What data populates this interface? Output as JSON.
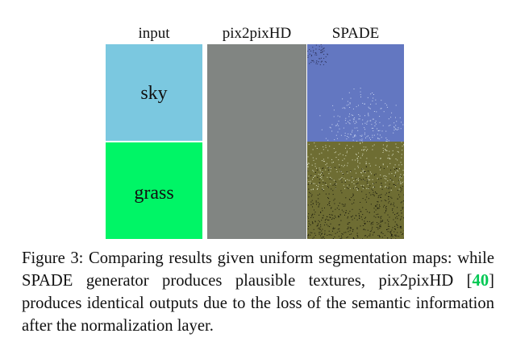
{
  "figure": {
    "columns": {
      "input": "input",
      "pix2pixhd": "pix2pixHD",
      "spade": "SPADE"
    },
    "segments": {
      "sky": "sky",
      "grass": "grass"
    },
    "colors": {
      "sky_input": "#7bc8e0",
      "grass_input": "#00f566",
      "pix2pixhd_output": "#818582",
      "spade_sky": "#6377c1",
      "spade_grass": "#6e6d33"
    }
  },
  "caption": {
    "prefix": "Figure 3: Comparing results given uniform segmentation maps: while SPADE generator produces plausible textures, pix2pixHD [",
    "ref": "40",
    "suffix": "] produces identical outputs due to the loss of the semantic information after the normalization layer."
  }
}
